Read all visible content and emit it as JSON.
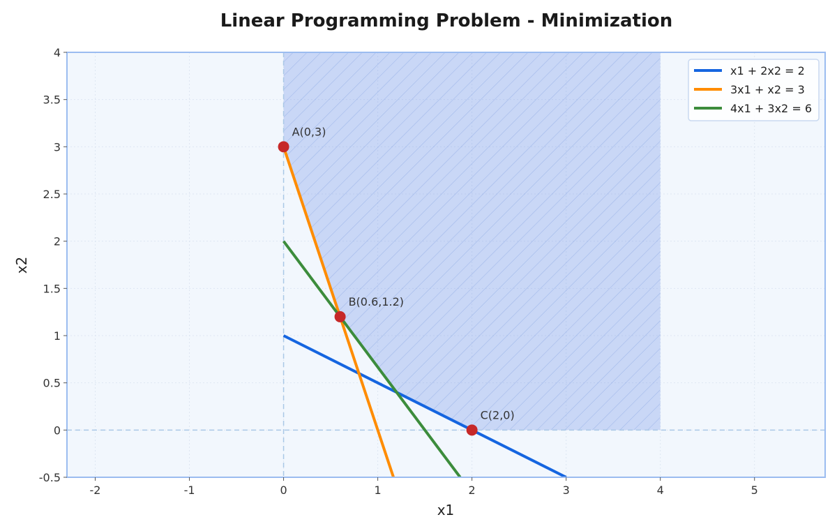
{
  "chart_data": {
    "type": "line",
    "title": "Linear Programming Problem - Minimization",
    "xlabel": "x1",
    "ylabel": "x2",
    "xlim": [
      -2.3,
      5.75
    ],
    "ylim": [
      -0.5,
      4
    ],
    "xticks": [
      -2,
      -1,
      0,
      1,
      2,
      3,
      4,
      5
    ],
    "yticks": [
      -0.5,
      0,
      0.5,
      1,
      1.5,
      2,
      2.5,
      3,
      3.5,
      4
    ],
    "xtick_labels": [
      "-2",
      "-1",
      "0",
      "1",
      "2",
      "3",
      "4",
      "5"
    ],
    "ytick_labels": [
      "-0.5",
      "0",
      "0.5",
      "1",
      "1.5",
      "2",
      "2.5",
      "3",
      "3.5",
      "4"
    ],
    "grid": true,
    "legend_position": "top-right",
    "series": [
      {
        "name": "x1 + 2x2 = 2",
        "color": "#1565e0",
        "x": [
          0,
          3
        ],
        "y": [
          1,
          -0.5
        ]
      },
      {
        "name": "3x1 + x2 = 3",
        "color": "#ff8c00",
        "x": [
          0,
          1.1667
        ],
        "y": [
          3,
          -0.5
        ]
      },
      {
        "name": "4x1 + 3x2 = 6",
        "color": "#3c8c3c",
        "x": [
          0,
          1.875
        ],
        "y": [
          2,
          -0.5
        ]
      }
    ],
    "feasible_region": {
      "color": "#6a8fe8",
      "vertices": [
        [
          0,
          4
        ],
        [
          0,
          3
        ],
        [
          0.6,
          1.2
        ],
        [
          1.2,
          0.4
        ],
        [
          2,
          0
        ],
        [
          4,
          0
        ],
        [
          4,
          4
        ]
      ]
    },
    "points": [
      {
        "label": "A(0,3)",
        "x": 0,
        "y": 3
      },
      {
        "label": "B(0.6,1.2)",
        "x": 0.6,
        "y": 1.2
      },
      {
        "label": "C(2,0)",
        "x": 2,
        "y": 0
      }
    ],
    "point_color": "#c62828",
    "axis_line_color": "#aac8e6",
    "frame_color": "#9bbcf0",
    "background_color": "#f2f7fd"
  }
}
